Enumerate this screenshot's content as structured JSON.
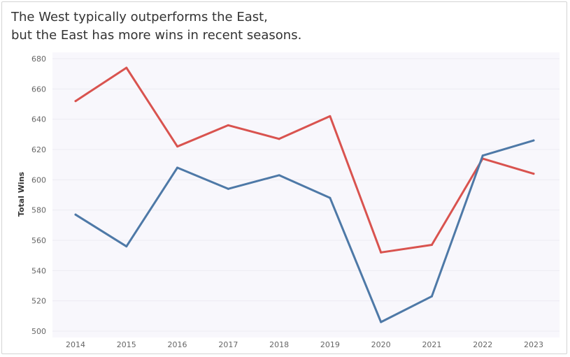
{
  "title": {
    "line1": "The West typically outperforms the East,",
    "line2": "but the East has more wins in recent seasons."
  },
  "chart_data": {
    "type": "line",
    "categories": [
      "2014",
      "2015",
      "2016",
      "2017",
      "2018",
      "2019",
      "2020",
      "2021",
      "2022",
      "2023"
    ],
    "series": [
      {
        "values": [
          652,
          674,
          622,
          636,
          627,
          642,
          552,
          557,
          614,
          604
        ],
        "color": "#d9534f"
      },
      {
        "values": [
          577,
          556,
          608,
          594,
          603,
          588,
          506,
          523,
          616,
          626
        ],
        "color": "#4e79a7"
      }
    ],
    "xlabel": "",
    "ylabel": "Total Wins",
    "ylim": [
      500,
      680
    ],
    "yticks": [
      500,
      520,
      540,
      560,
      580,
      600,
      620,
      640,
      660,
      680
    ],
    "grid": true,
    "legend": "none",
    "plot_background": "#f8f7fc"
  }
}
